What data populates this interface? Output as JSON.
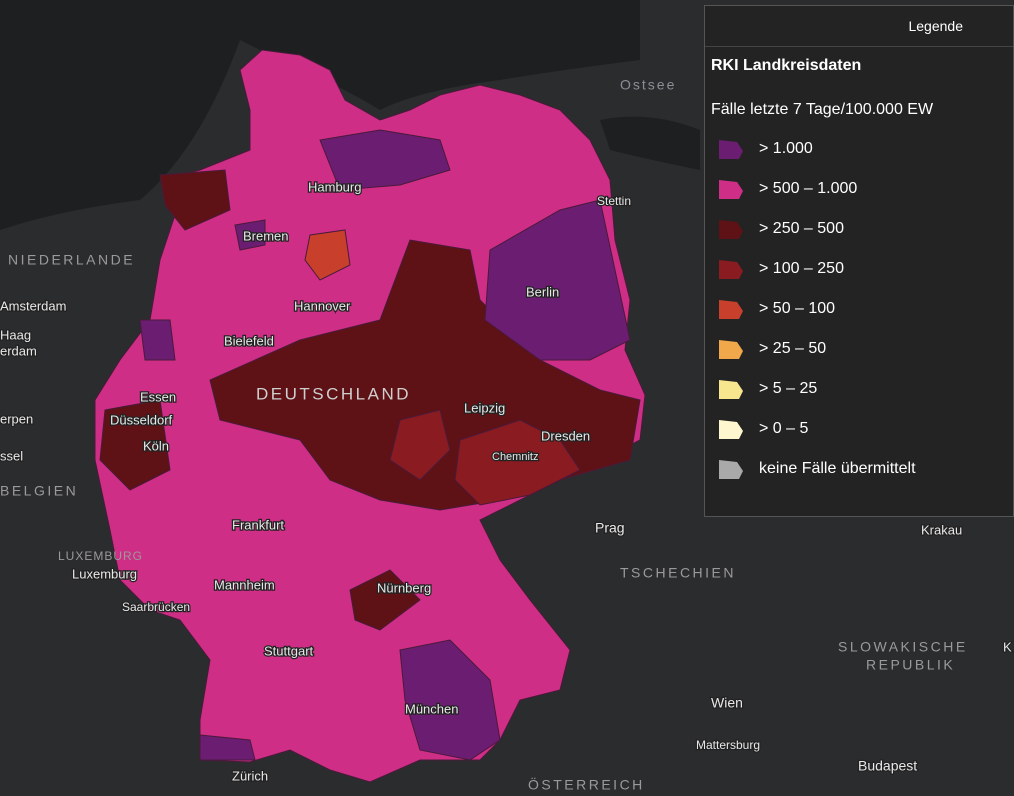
{
  "map": {
    "labels": {
      "sea": [
        "Ostsee"
      ],
      "countries": [
        "NIEDERLANDE",
        "DEUTSCHLAND",
        "BELGIEN",
        "LUXEMBURG",
        "TSCHECHIEN",
        "SLOWAKISCHE",
        "REPUBLIK",
        "ÖSTERREICH"
      ],
      "cities": [
        "Hamburg",
        "Stettin",
        "Bremen",
        "Berlin",
        "Amsterdam",
        "Haag",
        "erdam",
        "Hannover",
        "Bielefeld",
        "Essen",
        "Düsseldorf",
        "Leipzig",
        "erpen",
        "Dresden",
        "Köln",
        "Chemnitz",
        "ssel",
        "Frankfurt",
        "Prag",
        "Krakau",
        "Luxemburg",
        "Mannheim",
        "Nürnberg",
        "Saarbrücken",
        "K",
        "Stuttgart",
        "Wien",
        "München",
        "Mattersburg",
        "Budapest",
        "Zürich"
      ]
    }
  },
  "legend": {
    "header": "Legende",
    "title": "RKI Landkreisdaten",
    "subtitle": "Fälle letzte 7 Tage/100.000 EW",
    "items": [
      {
        "label": "> 1.000",
        "color": "#6b1d72"
      },
      {
        "label": "> 500 – 1.000",
        "color": "#cf2e86"
      },
      {
        "label": "> 250 – 500",
        "color": "#5e1216"
      },
      {
        "label": "> 100 – 250",
        "color": "#8a1b20"
      },
      {
        "label": "> 50 – 100",
        "color": "#c8402c"
      },
      {
        "label": "> 25 – 50",
        "color": "#f0a84a"
      },
      {
        "label": "> 5 – 25",
        "color": "#f8e68f"
      },
      {
        "label": "> 0 – 5",
        "color": "#fdf6cf"
      },
      {
        "label": "keine Fälle übermittelt",
        "color": "#a9a9a9"
      }
    ]
  }
}
